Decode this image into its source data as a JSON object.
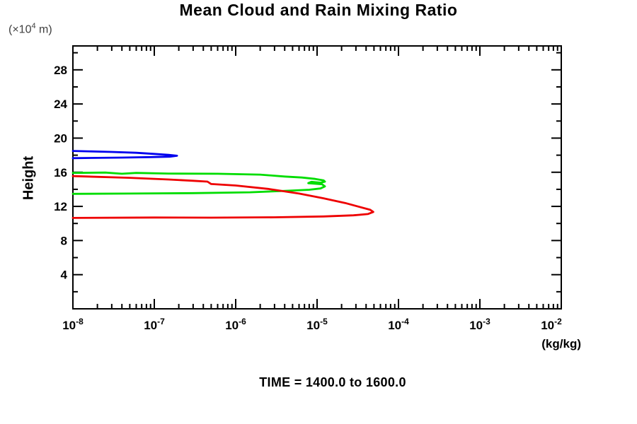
{
  "title": "Mean Cloud and Rain Mixing Ratio",
  "y_axis_unit": {
    "prefix": "(×10",
    "exponent": "4",
    "suffix": " m)"
  },
  "ylabel": "Height",
  "xlabel": "(kg/kg)",
  "footer": "TIME = 1400.0 to 1600.0",
  "chart_data": {
    "type": "line",
    "title": "Mean Cloud and Rain Mixing Ratio",
    "xlabel": "(kg/kg)",
    "ylabel": "Height (×10⁴ m)",
    "x_scale": "log",
    "xlim": [
      1e-08,
      0.01
    ],
    "ylim": [
      0,
      30.8
    ],
    "grid": false,
    "legend": "none",
    "annotation": "TIME = 1400.0 to 1600.0",
    "x_ticks": [
      {
        "base": "10",
        "exp": "-8"
      },
      {
        "base": "10",
        "exp": "-7"
      },
      {
        "base": "10",
        "exp": "-6"
      },
      {
        "base": "10",
        "exp": "-5"
      },
      {
        "base": "10",
        "exp": "-4"
      },
      {
        "base": "10",
        "exp": "-3"
      },
      {
        "base": "10",
        "exp": "-2"
      }
    ],
    "x_tick_exponents": [
      -8,
      -7,
      -6,
      -5,
      -4,
      -3,
      -2
    ],
    "y_major_ticks": [
      4,
      8,
      12,
      16,
      20,
      24,
      28
    ],
    "y_minor_ticks": [
      2,
      6,
      10,
      14,
      18,
      22,
      26,
      30
    ],
    "series": [
      {
        "name": "blue",
        "color": "#0000ee",
        "points": [
          [
            1e-08,
            18.5
          ],
          [
            3e-08,
            18.38
          ],
          [
            6e-08,
            18.28
          ],
          [
            1e-07,
            18.15
          ],
          [
            1.5e-07,
            18.03
          ],
          [
            1.9e-07,
            17.93
          ],
          [
            1.55e-07,
            17.83
          ],
          [
            9e-08,
            17.78
          ],
          [
            4e-08,
            17.72
          ],
          [
            1e-08,
            17.65
          ]
        ]
      },
      {
        "name": "green",
        "color": "#00dd00",
        "points": [
          [
            1e-08,
            15.92
          ],
          [
            2.5e-08,
            15.96
          ],
          [
            4e-08,
            15.82
          ],
          [
            6e-08,
            15.92
          ],
          [
            1.5e-07,
            15.85
          ],
          [
            6e-07,
            15.82
          ],
          [
            2e-06,
            15.72
          ],
          [
            4e-06,
            15.5
          ],
          [
            6.5e-06,
            15.38
          ],
          [
            9.5e-06,
            15.22
          ],
          [
            1.2e-05,
            15.05
          ],
          [
            1.25e-05,
            14.9
          ],
          [
            1.1e-05,
            14.78
          ],
          [
            8.5e-06,
            14.88
          ],
          [
            7.8e-06,
            14.72
          ],
          [
            1.15e-05,
            14.6
          ],
          [
            1.25e-05,
            14.35
          ],
          [
            1.1e-05,
            14.1
          ],
          [
            8e-06,
            13.95
          ],
          [
            4e-06,
            13.82
          ],
          [
            1.5e-06,
            13.65
          ],
          [
            3e-07,
            13.55
          ],
          [
            5e-08,
            13.5
          ],
          [
            1e-08,
            13.47
          ]
        ]
      },
      {
        "name": "red",
        "color": "#ee0000",
        "points": [
          [
            1e-08,
            15.55
          ],
          [
            5e-08,
            15.35
          ],
          [
            1.5e-07,
            15.15
          ],
          [
            3e-07,
            15.0
          ],
          [
            4.5e-07,
            14.9
          ],
          [
            5e-07,
            14.62
          ],
          [
            1e-06,
            14.45
          ],
          [
            2.5e-06,
            14.05
          ],
          [
            6e-06,
            13.5
          ],
          [
            1.2e-05,
            12.95
          ],
          [
            2.2e-05,
            12.4
          ],
          [
            3.3e-05,
            11.95
          ],
          [
            4.5e-05,
            11.6
          ],
          [
            4.9e-05,
            11.35
          ],
          [
            4.2e-05,
            11.1
          ],
          [
            2.8e-05,
            10.95
          ],
          [
            1.2e-05,
            10.82
          ],
          [
            3e-06,
            10.72
          ],
          [
            5e-07,
            10.68
          ],
          [
            1e-07,
            10.7
          ],
          [
            1e-08,
            10.65
          ]
        ]
      }
    ]
  }
}
